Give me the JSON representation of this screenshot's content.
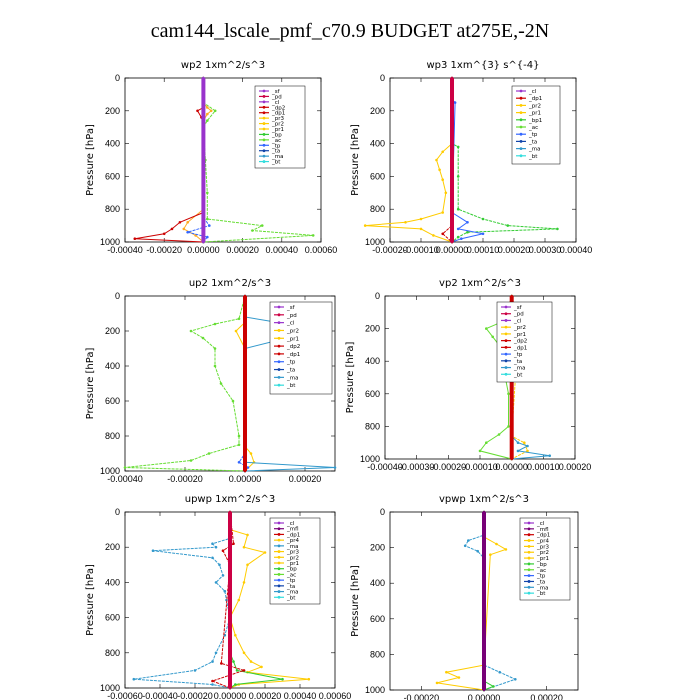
{
  "title": "cam144_lscale_pmf_c70.9  BUDGET at275E,-2N",
  "colors": {
    "sf": "#9933cc",
    "pd": "#cc0044",
    "cl": "#9933cc",
    "dp": "#cc0000",
    "pr": "#ffcc00",
    "pr1": "#ffaa22",
    "bp": "#33cc33",
    "ac": "#66dd33",
    "tp": "#3366ff",
    "ta": "#1144aa",
    "ma": "#3399cc",
    "bt": "#33dddd",
    "mfl": "#770077"
  },
  "chart_data": [
    {
      "type": "line",
      "title": "wp2   1xm^2/s^3",
      "ylabel": "Pressure  [hPa]",
      "ylim": [
        1000,
        0
      ],
      "yticks": [
        "0",
        "200",
        "400",
        "600",
        "800",
        "1000"
      ],
      "xlim": [
        -0.0004,
        0.0006
      ],
      "xticks": [
        "-0.00040",
        "-0.00020",
        "0.00000",
        "0.00020",
        "0.00040",
        "0.00060"
      ],
      "legend": [
        "_sf",
        "_pd",
        "_cl",
        "_dp2",
        "_dp1",
        "_pr3",
        "_pr2",
        "_pr1",
        "_bp",
        "_ac",
        "_tp",
        "_ta",
        "_ma",
        "_bt"
      ],
      "series": [
        {
          "name": "_pr1",
          "color": "pr1",
          "p": [
            0,
            150,
            180,
            200,
            220,
            260,
            400,
            800,
            880,
            920,
            960,
            1000
          ],
          "v": [
            0,
            0,
            2e-05,
            4e-05,
            2e-05,
            0,
            0,
            0,
            -8e-05,
            -0.0001,
            -4e-05,
            0
          ]
        },
        {
          "name": "_bp",
          "color": "ac",
          "p": [
            0,
            150,
            200,
            260,
            300,
            500,
            700,
            860,
            900,
            930,
            960,
            1000
          ],
          "v": [
            0,
            0,
            6e-05,
            2e-05,
            0,
            1e-05,
            2e-05,
            2e-05,
            0.0003,
            0.00025,
            0.00056,
            0
          ]
        },
        {
          "name": "_dp1",
          "color": "dp",
          "p": [
            0,
            180,
            200,
            240,
            280,
            820,
            880,
            920,
            950,
            980,
            1000
          ],
          "v": [
            0,
            0,
            -3e-05,
            -1e-05,
            0,
            0,
            -0.00012,
            -0.00016,
            -0.0002,
            -0.00035,
            0
          ]
        },
        {
          "name": "_tp",
          "color": "tp",
          "p": [
            0,
            850,
            900,
            940,
            970,
            1000
          ],
          "v": [
            0,
            0,
            3e-05,
            -8e-05,
            2e-05,
            0
          ]
        },
        {
          "name": "_bt",
          "color": "sf",
          "p": [
            0,
            500,
            1000
          ],
          "v": [
            0,
            0,
            0
          ]
        }
      ]
    },
    {
      "type": "line",
      "title": "wp3   1xm^{3} s^{-4}",
      "ylabel": "Pressure  [hPa]",
      "ylim": [
        1000,
        0
      ],
      "yticks": [
        "0",
        "200",
        "400",
        "600",
        "800",
        "1000"
      ],
      "xlim": [
        -0.0002,
        0.0004
      ],
      "xticks": [
        "-0.00020",
        "-0.00010",
        "0.00000",
        "0.00010",
        "0.00020",
        "0.00030",
        "0.00040"
      ],
      "legend": [
        "_cl",
        "_dp1",
        "_pr2",
        "_pr1",
        "_bp1",
        "_ac",
        "_tp",
        "_ta",
        "_ma",
        "_bt"
      ],
      "series": [
        {
          "name": "_pr1",
          "color": "pr",
          "p": [
            0,
            400,
            450,
            500,
            560,
            620,
            700,
            820,
            860,
            880,
            900,
            920,
            960,
            1000
          ],
          "v": [
            0,
            0,
            -3e-05,
            -5e-05,
            -4e-05,
            -3e-05,
            -2e-05,
            -3e-05,
            -0.0001,
            -0.00015,
            -0.00028,
            -0.0001,
            -6e-05,
            0
          ]
        },
        {
          "name": "_ac",
          "color": "bp",
          "p": [
            0,
            400,
            420,
            600,
            800,
            860,
            900,
            920,
            940,
            970,
            1000
          ],
          "v": [
            0,
            0,
            2e-05,
            2e-05,
            2e-05,
            0.0001,
            0.00018,
            0.00034,
            5e-05,
            2e-05,
            0
          ]
        },
        {
          "name": "_tp",
          "color": "tp",
          "p": [
            0,
            130,
            150,
            820,
            880,
            920,
            950,
            980,
            1000
          ],
          "v": [
            0,
            0,
            1e-05,
            0,
            5e-05,
            2e-05,
            0.0001,
            3e-05,
            0
          ]
        },
        {
          "name": "_dp1",
          "color": "dp",
          "p": [
            0,
            900,
            950,
            1000
          ],
          "v": [
            0,
            0,
            -3e-05,
            0
          ]
        },
        {
          "name": "_bt",
          "color": "pd",
          "p": [
            0,
            500,
            1000
          ],
          "v": [
            0,
            0,
            0
          ]
        }
      ]
    },
    {
      "type": "line",
      "title": "up2   1xm^2/s^3",
      "ylabel": "Pressure  [hPa]",
      "ylim": [
        1000,
        0
      ],
      "yticks": [
        "0",
        "200",
        "400",
        "600",
        "800",
        "1000"
      ],
      "xlim": [
        -0.0004,
        0.0003
      ],
      "xticks": [
        "-0.00040",
        "-0.00020",
        "0.00000",
        "0.00020"
      ],
      "legend": [
        "_sf",
        "_pd",
        "_cl",
        "_pr2",
        "_pr1",
        "_dp2",
        "_dp1",
        "_tp",
        "_ta",
        "_ma",
        "_bt"
      ],
      "series": [
        {
          "name": "_pr2",
          "color": "pr",
          "p": [
            0,
            150,
            200,
            300,
            860,
            900,
            950,
            1000
          ],
          "v": [
            0,
            0,
            -3e-05,
            0,
            0,
            2e-05,
            3e-05,
            0
          ]
        },
        {
          "name": "_dp2",
          "color": "ac",
          "p": [
            0,
            130,
            160,
            200,
            240,
            300,
            400,
            500,
            600,
            800,
            850,
            900,
            940,
            980,
            1000
          ],
          "v": [
            0,
            -2e-05,
            -0.0001,
            -0.00018,
            -0.00014,
            -0.0001,
            -0.0001,
            -8e-05,
            -4e-05,
            -2e-05,
            -2e-05,
            -0.00012,
            -0.00018,
            -0.0004,
            0
          ]
        },
        {
          "name": "_ma",
          "color": "ma",
          "p": [
            0,
            120,
            160,
            200,
            240,
            300,
            500,
            950,
            980,
            1000
          ],
          "v": [
            0,
            0,
            0.00014,
            0.00026,
            0.00014,
            0,
            0,
            0,
            0.0003,
            0
          ]
        },
        {
          "name": "_tp",
          "color": "tp",
          "p": [
            0,
            900,
            950,
            980,
            1000
          ],
          "v": [
            0,
            0,
            -2e-05,
            1e-05,
            0
          ]
        },
        {
          "name": "_bt",
          "color": "dp",
          "p": [
            0,
            500,
            1000
          ],
          "v": [
            0,
            0,
            0
          ]
        }
      ]
    },
    {
      "type": "line",
      "title": "vp2   1xm^2/s^3",
      "ylabel": "Pressure  [hPa]",
      "ylim": [
        1000,
        0
      ],
      "yticks": [
        "0",
        "200",
        "400",
        "600",
        "800",
        "1000"
      ],
      "xlim": [
        -0.0004,
        0.0002
      ],
      "xticks": [
        "-0.00040",
        "-0.00030",
        "-0.00020",
        "-0.00010",
        "0.00000",
        "0.00010",
        "0.00020"
      ],
      "legend": [
        "_sf",
        "_pd",
        "_cl",
        "_pr2",
        "_pr1",
        "_dp2",
        "_dp1",
        "_tp",
        "_ta",
        "_ma",
        "_bt"
      ],
      "series": [
        {
          "name": "_dp2",
          "color": "ac",
          "p": [
            0,
            150,
            200,
            250,
            300,
            350,
            400,
            500,
            600,
            800,
            850,
            900,
            950,
            1000
          ],
          "v": [
            0,
            -2e-05,
            -8e-05,
            -6e-05,
            -4e-05,
            -3e-05,
            -2e-05,
            -2e-05,
            -1e-05,
            -1e-05,
            -4e-05,
            -8e-05,
            -0.0001,
            0
          ]
        },
        {
          "name": "_pr2",
          "color": "pr",
          "p": [
            0,
            150,
            200,
            250,
            860,
            900,
            950,
            1000
          ],
          "v": [
            0,
            2e-05,
            4e-05,
            2e-05,
            0,
            4e-05,
            5e-05,
            0
          ]
        },
        {
          "name": "_ma",
          "color": "ma",
          "p": [
            0,
            860,
            900,
            920,
            950,
            980,
            1000
          ],
          "v": [
            0,
            0,
            2e-05,
            5e-05,
            2e-05,
            0.00012,
            0
          ]
        },
        {
          "name": "_bt",
          "color": "dp",
          "p": [
            0,
            500,
            1000
          ],
          "v": [
            0,
            0,
            0
          ]
        }
      ]
    },
    {
      "type": "line",
      "title": "upwp   1xm^2/s^3",
      "ylabel": "Pressure  [hPa]",
      "ylim": [
        1000,
        0
      ],
      "yticks": [
        "0",
        "200",
        "400",
        "600",
        "800",
        "1000"
      ],
      "xlim": [
        -0.0006,
        0.0006
      ],
      "xticks": [
        "-0.00060",
        "-0.00040",
        "-0.00020",
        "0.00000",
        "0.00020",
        "0.00040",
        "0.00060"
      ],
      "legend": [
        "_cl",
        "_mfl",
        "_dp1",
        "_pr4",
        "_ma",
        "_pr3",
        "_pr2",
        "_pr1",
        "_bp",
        "_ac",
        "_tp",
        "_ta",
        "_ma",
        "_bt"
      ],
      "series": [
        {
          "name": "_pr3",
          "color": "pr",
          "p": [
            0,
            100,
            130,
            200,
            230,
            300,
            400,
            500,
            600,
            700,
            800,
            850,
            880,
            910,
            950,
            980,
            1000
          ],
          "v": [
            0,
            0,
            0.0001,
            8e-05,
            0.0002,
            0.0001,
            8e-05,
            5e-05,
            0,
            3e-05,
            8e-05,
            0.00012,
            0.00018,
            0.0001,
            0.00045,
            5e-05,
            0
          ]
        },
        {
          "name": "_ma",
          "color": "ma",
          "p": [
            0,
            150,
            180,
            200,
            220,
            260,
            300,
            360,
            400,
            450,
            500,
            600,
            700,
            800,
            850,
            900,
            950,
            980,
            1000
          ],
          "v": [
            0,
            0,
            -0.0001,
            -8e-05,
            -0.00044,
            -0.0001,
            -6e-05,
            -4e-05,
            -8e-05,
            -3e-05,
            -2e-05,
            0,
            -3e-05,
            -8e-05,
            -0.0001,
            -0.0002,
            -0.00055,
            -0.0001,
            0
          ]
        },
        {
          "name": "_ac",
          "color": "bp",
          "p": [
            0,
            800,
            850,
            900,
            950,
            980,
            1000
          ],
          "v": [
            0,
            0,
            2e-05,
            4e-05,
            0.0003,
            3e-05,
            0
          ]
        },
        {
          "name": "_dp1",
          "color": "dp",
          "p": [
            0,
            180,
            220,
            300,
            860,
            900,
            960,
            1000
          ],
          "v": [
            0,
            2e-05,
            -4e-05,
            0,
            -5e-05,
            8e-05,
            -0.0001,
            0
          ]
        },
        {
          "name": "_bt",
          "color": "pd",
          "p": [
            0,
            500,
            1000
          ],
          "v": [
            0,
            0,
            0
          ]
        }
      ]
    },
    {
      "type": "line",
      "title": "vpwp   1xm^2/s^3",
      "ylabel": "Pressure  [hPa]",
      "ylim": [
        1000,
        0
      ],
      "yticks": [
        "0",
        "200",
        "400",
        "600",
        "800",
        "1000"
      ],
      "xlim": [
        -0.0003,
        0.0003
      ],
      "xticks": [
        "-0.00020",
        "0.00000",
        "0.00020"
      ],
      "legend": [
        "_cl",
        "_mfl",
        "_dp1",
        "_pr4",
        "_pr3",
        "_pr2",
        "_pr1",
        "_bp",
        "_ac",
        "_tp",
        "_ta",
        "_ma",
        "_bt"
      ],
      "series": [
        {
          "name": "_pr2",
          "color": "pr",
          "p": [
            0,
            140,
            180,
            210,
            240,
            860,
            900,
            930,
            960,
            1000
          ],
          "v": [
            0,
            0,
            4e-05,
            7e-05,
            2e-05,
            0,
            -0.00012,
            -8e-05,
            -0.00015,
            0
          ]
        },
        {
          "name": "_ma",
          "color": "ma",
          "p": [
            0,
            130,
            160,
            190,
            220,
            260,
            860,
            900,
            940,
            1000
          ],
          "v": [
            0,
            0,
            -5e-05,
            -6e-05,
            -2e-05,
            0,
            0,
            5e-05,
            0.0001,
            0
          ]
        },
        {
          "name": "_ac",
          "color": "bp",
          "p": [
            0,
            950,
            980,
            1000
          ],
          "v": [
            0,
            0,
            3e-05,
            0
          ]
        },
        {
          "name": "_bt",
          "color": "mfl",
          "p": [
            0,
            500,
            1000
          ],
          "v": [
            0,
            0,
            0
          ]
        }
      ]
    }
  ]
}
